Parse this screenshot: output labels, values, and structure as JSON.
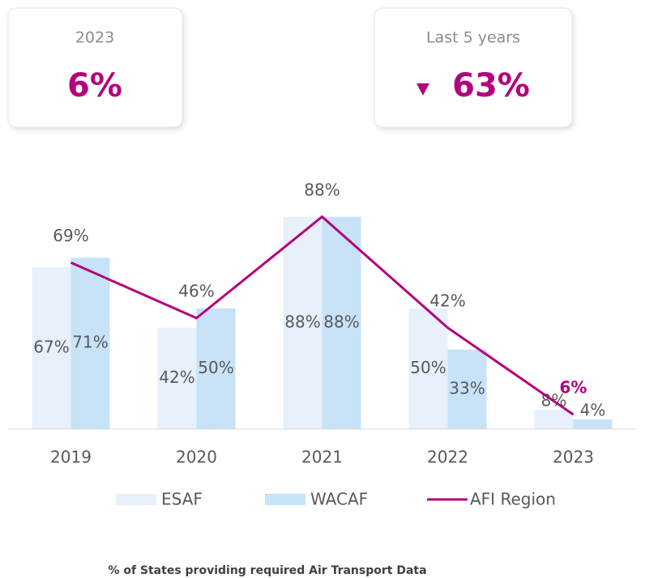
{
  "cards": [
    {
      "label": "2023",
      "value": "6%"
    },
    {
      "label": "Last 5 years",
      "value": "63%"
    }
  ],
  "chart_data": {
    "type": "bar",
    "categories": [
      "2019",
      "2020",
      "2021",
      "2022",
      "2023"
    ],
    "ylim": [
      0,
      100
    ],
    "series": [
      {
        "name": "ESAF",
        "type": "bar",
        "color": "#e7f0fb",
        "values": [
          67,
          42,
          88,
          50,
          8
        ],
        "value_labels": [
          "67%",
          "42%",
          "88%",
          "50%",
          "8%"
        ]
      },
      {
        "name": "WACAF",
        "type": "bar",
        "color": "#c8e2f8",
        "values": [
          71,
          50,
          88,
          33,
          4
        ],
        "value_labels": [
          "71%",
          "50%",
          "88%",
          "33%",
          "4%"
        ]
      },
      {
        "name": "AFI Region",
        "type": "line",
        "color": "#b4007c",
        "values": [
          69,
          46,
          88,
          42,
          6
        ],
        "value_labels": [
          "69%",
          "46%",
          "88%",
          "42%",
          "6%"
        ]
      }
    ],
    "footnote": "% of States providing required Air Transport Data"
  }
}
